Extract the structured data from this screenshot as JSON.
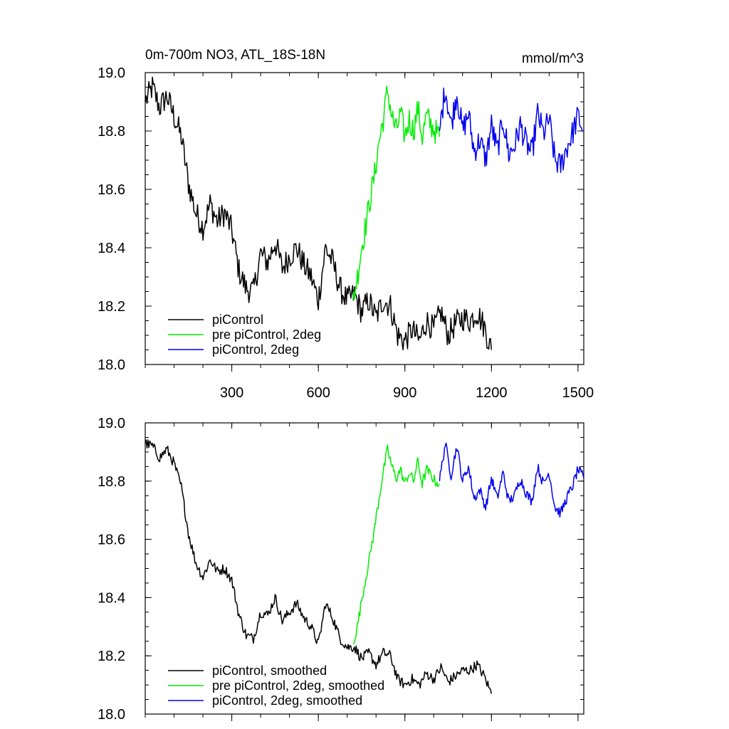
{
  "chart_data": [
    {
      "type": "line",
      "title": "0m-700m NO3, ATL_18S-18N",
      "units": "mmol/m^3",
      "xlim": [
        0,
        1520
      ],
      "ylim": [
        18.0,
        19.0
      ],
      "xticks": [
        300,
        600,
        900,
        1200,
        1500
      ],
      "xtick_labels": [
        "300",
        "600",
        "900",
        "1200",
        "1500"
      ],
      "yticks": [
        18.0,
        18.2,
        18.4,
        18.6,
        18.8,
        19.0
      ],
      "ytick_labels": [
        "18.0",
        "18.2",
        "18.4",
        "18.6",
        "18.8",
        "19.0"
      ],
      "legend_position": "bottom-left",
      "series": [
        {
          "name": "piControl",
          "color": "#000000",
          "x": [
            0,
            25,
            50,
            75,
            100,
            125,
            150,
            175,
            200,
            225,
            250,
            275,
            300,
            325,
            350,
            375,
            400,
            425,
            450,
            475,
            500,
            525,
            550,
            575,
            600,
            625,
            650,
            675,
            700,
            725,
            750,
            775,
            800,
            825,
            850,
            875,
            900,
            925,
            950,
            975,
            1000,
            1025,
            1050,
            1075,
            1100,
            1125,
            1150,
            1175,
            1200
          ],
          "y": [
            18.9,
            18.95,
            18.88,
            18.92,
            18.85,
            18.78,
            18.62,
            18.52,
            18.47,
            18.55,
            18.49,
            18.52,
            18.46,
            18.32,
            18.26,
            18.25,
            18.38,
            18.35,
            18.42,
            18.33,
            18.37,
            18.4,
            18.34,
            18.3,
            18.22,
            18.4,
            18.35,
            18.26,
            18.22,
            18.24,
            18.18,
            18.22,
            18.16,
            18.22,
            18.2,
            18.1,
            18.08,
            18.12,
            18.08,
            18.15,
            18.12,
            18.18,
            18.1,
            18.14,
            18.16,
            18.15,
            18.18,
            18.13,
            18.05
          ]
        },
        {
          "name": "pre piControl, 2deg",
          "color": "#00ee00",
          "x": [
            720,
            735,
            750,
            765,
            780,
            795,
            810,
            825,
            840,
            855,
            870,
            885,
            900,
            915,
            930,
            945,
            960,
            975,
            990,
            1005,
            1020
          ],
          "y": [
            18.22,
            18.3,
            18.4,
            18.48,
            18.57,
            18.65,
            18.76,
            18.84,
            18.94,
            18.85,
            18.8,
            18.86,
            18.78,
            18.84,
            18.8,
            18.88,
            18.78,
            18.85,
            18.82,
            18.8,
            18.78
          ]
        },
        {
          "name": "piControl, 2deg",
          "color": "#0000ee",
          "x": [
            1020,
            1040,
            1060,
            1080,
            1100,
            1120,
            1140,
            1160,
            1180,
            1200,
            1220,
            1240,
            1260,
            1280,
            1300,
            1320,
            1340,
            1360,
            1380,
            1400,
            1420,
            1440,
            1460,
            1480,
            1500,
            1520
          ],
          "y": [
            18.8,
            18.95,
            18.82,
            18.93,
            18.8,
            18.86,
            18.73,
            18.77,
            18.7,
            18.82,
            18.73,
            18.84,
            18.72,
            18.75,
            18.82,
            18.76,
            18.72,
            18.86,
            18.79,
            18.84,
            18.7,
            18.68,
            18.74,
            18.79,
            18.85,
            18.8
          ]
        }
      ]
    },
    {
      "type": "line",
      "xlim": [
        0,
        1520
      ],
      "ylim": [
        18.0,
        19.0
      ],
      "xticks": [
        300,
        600,
        900,
        1200,
        1500
      ],
      "yticks": [
        18.0,
        18.2,
        18.4,
        18.6,
        18.8,
        19.0
      ],
      "ytick_labels": [
        "18.0",
        "18.2",
        "18.4",
        "18.6",
        "18.8",
        "19.0"
      ],
      "legend_position": "bottom-left",
      "series": [
        {
          "name": "piControl, smoothed",
          "color": "#000000",
          "x": [
            0,
            25,
            50,
            75,
            100,
            125,
            150,
            175,
            200,
            225,
            250,
            275,
            300,
            325,
            350,
            375,
            400,
            425,
            450,
            475,
            500,
            525,
            550,
            575,
            600,
            625,
            650,
            675,
            700,
            725,
            750,
            775,
            800,
            825,
            850,
            875,
            900,
            925,
            950,
            975,
            1000,
            1025,
            1050,
            1075,
            1100,
            1125,
            1150,
            1175,
            1200
          ],
          "y": [
            18.93,
            18.92,
            18.88,
            18.91,
            18.86,
            18.78,
            18.62,
            18.52,
            18.47,
            18.53,
            18.49,
            18.5,
            18.46,
            18.34,
            18.27,
            18.26,
            18.35,
            18.34,
            18.4,
            18.32,
            18.35,
            18.38,
            18.33,
            18.3,
            18.24,
            18.38,
            18.33,
            18.26,
            18.23,
            18.23,
            18.19,
            18.21,
            18.17,
            18.21,
            18.2,
            18.12,
            18.1,
            18.12,
            18.1,
            18.14,
            18.12,
            18.16,
            18.11,
            18.13,
            18.15,
            18.15,
            18.17,
            18.13,
            18.07
          ]
        },
        {
          "name": "pre piControl, 2deg, smoothed",
          "color": "#00ee00",
          "x": [
            720,
            735,
            750,
            765,
            780,
            795,
            810,
            825,
            840,
            855,
            870,
            885,
            900,
            915,
            930,
            945,
            960,
            975,
            990,
            1005,
            1020
          ],
          "y": [
            18.24,
            18.3,
            18.39,
            18.47,
            18.55,
            18.64,
            18.74,
            18.83,
            18.91,
            18.85,
            18.81,
            18.84,
            18.79,
            18.83,
            18.8,
            18.87,
            18.79,
            18.84,
            18.82,
            18.8,
            18.79
          ]
        },
        {
          "name": "piControl, 2deg, smoothed",
          "color": "#0000ee",
          "x": [
            1020,
            1040,
            1060,
            1080,
            1100,
            1120,
            1140,
            1160,
            1180,
            1200,
            1220,
            1240,
            1260,
            1280,
            1300,
            1320,
            1340,
            1360,
            1380,
            1400,
            1420,
            1440,
            1460,
            1480,
            1500,
            1520
          ],
          "y": [
            18.8,
            18.93,
            18.82,
            18.92,
            18.8,
            18.85,
            18.74,
            18.77,
            18.71,
            18.81,
            18.74,
            18.83,
            18.73,
            18.75,
            18.81,
            18.76,
            18.73,
            18.85,
            18.79,
            18.83,
            18.71,
            18.69,
            18.74,
            18.78,
            18.84,
            18.81
          ]
        }
      ]
    }
  ]
}
